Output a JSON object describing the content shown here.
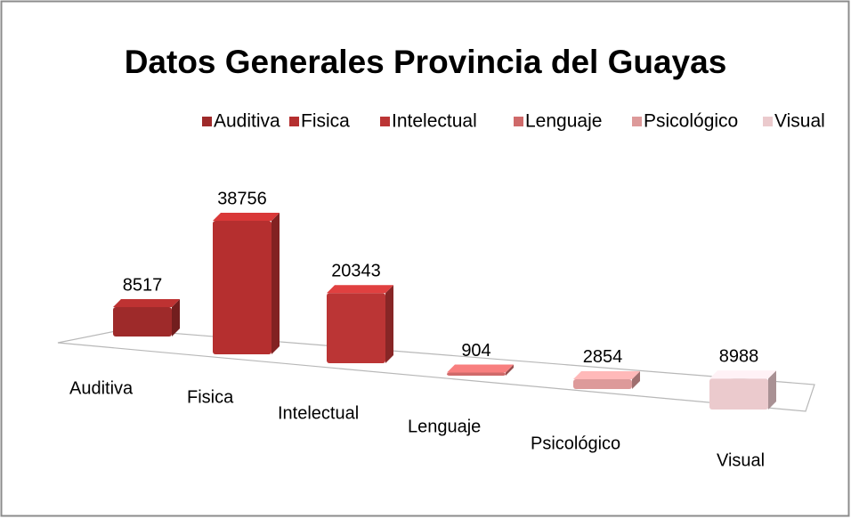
{
  "chart_data": {
    "type": "bar3d",
    "title": "Datos Generales Provincia del Guayas",
    "categories": [
      "Auditiva",
      "Fisica",
      "Intelectual",
      "Lenguaje",
      "Psicológico",
      "Visual"
    ],
    "values": [
      8517,
      38756,
      20343,
      904,
      2854,
      8988
    ],
    "colors": [
      "#9e2a2a",
      "#b52f2f",
      "#bb3535",
      "#cf6a6a",
      "#dd9a9a",
      "#ebcacd"
    ],
    "legend": "top"
  }
}
